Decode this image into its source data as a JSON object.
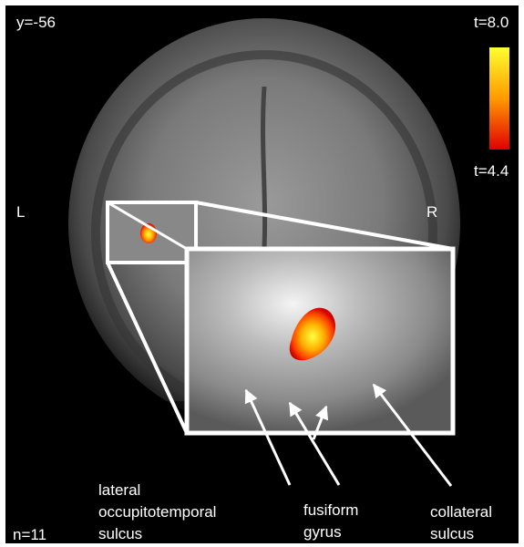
{
  "slice_label": "y=-56",
  "left_label": "L",
  "right_label": "R",
  "colorbar": {
    "max_label": "t=8.0",
    "min_label": "t=4.4"
  },
  "sample_size": "n=11",
  "annotations": [
    {
      "lines": [
        "lateral",
        "occupitotemporal",
        "sulcus"
      ]
    },
    {
      "lines": [
        "fusiform",
        "gyrus"
      ]
    },
    {
      "lines": [
        "collateral",
        "sulcus"
      ]
    }
  ]
}
